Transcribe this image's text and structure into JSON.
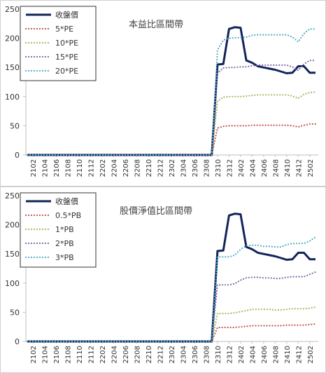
{
  "chart_data": [
    {
      "type": "line",
      "title": "本益比區間帶",
      "xlabel": "",
      "ylabel": "",
      "ylim": [
        0,
        250
      ],
      "yticks": [
        "0",
        "50",
        "100",
        "150",
        "200",
        "250"
      ],
      "grid": false,
      "legend_position": "top-left",
      "x": [
        "2101",
        "2102",
        "2103",
        "2104",
        "2105",
        "2106",
        "2107",
        "2108",
        "2109",
        "2110",
        "2111",
        "2112",
        "2201",
        "2202",
        "2203",
        "2204",
        "2205",
        "2206",
        "2207",
        "2208",
        "2209",
        "2210",
        "2211",
        "2212",
        "2301",
        "2302",
        "2303",
        "2304",
        "2305",
        "2306",
        "2307",
        "2308",
        "2309",
        "2310",
        "2311",
        "2312",
        "2401",
        "2402",
        "2403",
        "2404",
        "2405",
        "2406",
        "2407",
        "2408",
        "2409",
        "2410",
        "2411",
        "2412",
        "2501",
        "2502",
        "2503"
      ],
      "xtick_labels": [
        "2102",
        "2104",
        "2106",
        "2108",
        "2110",
        "2112",
        "2202",
        "2204",
        "2206",
        "2208",
        "2210",
        "2212",
        "2302",
        "2304",
        "2306",
        "2308",
        "2310",
        "2312",
        "2402",
        "2404",
        "2406",
        "2408",
        "2410",
        "2412",
        "2502"
      ],
      "series": [
        {
          "name": "收盤價",
          "color": "#12245a",
          "style": "solid",
          "values": [
            0,
            0,
            0,
            0,
            0,
            0,
            0,
            0,
            0,
            0,
            0,
            0,
            0,
            0,
            0,
            0,
            0,
            0,
            0,
            0,
            0,
            0,
            0,
            0,
            0,
            0,
            0,
            0,
            0,
            0,
            0,
            0,
            0,
            155,
            156,
            216,
            219,
            218,
            162,
            158,
            152,
            150,
            148,
            146,
            143,
            140,
            141,
            152,
            152,
            141,
            141
          ]
        },
        {
          "name": "5*PE",
          "color": "#c0504d",
          "style": "dotted",
          "values": [
            0,
            0,
            0,
            0,
            0,
            0,
            0,
            0,
            0,
            0,
            0,
            0,
            0,
            0,
            0,
            0,
            0,
            0,
            0,
            0,
            0,
            0,
            0,
            0,
            0,
            0,
            0,
            0,
            0,
            0,
            0,
            0,
            0,
            46,
            49,
            50,
            50,
            50,
            50,
            51,
            51,
            51,
            51,
            51,
            51,
            51,
            50,
            48,
            51,
            53,
            53
          ]
        },
        {
          "name": "10*PE",
          "color": "#9bbb59",
          "style": "dotted",
          "values": [
            0,
            0,
            0,
            0,
            0,
            0,
            0,
            0,
            0,
            0,
            0,
            0,
            0,
            0,
            0,
            0,
            0,
            0,
            0,
            0,
            0,
            0,
            0,
            0,
            0,
            0,
            0,
            0,
            0,
            0,
            0,
            0,
            0,
            92,
            99,
            100,
            100,
            100,
            101,
            102,
            103,
            103,
            103,
            103,
            103,
            103,
            101,
            97,
            104,
            107,
            108
          ]
        },
        {
          "name": "15*PE",
          "color": "#8064a2",
          "style": "dotted",
          "values": [
            0,
            0,
            0,
            0,
            0,
            0,
            0,
            0,
            0,
            0,
            0,
            0,
            0,
            0,
            0,
            0,
            0,
            0,
            0,
            0,
            0,
            0,
            0,
            0,
            0,
            0,
            0,
            0,
            0,
            0,
            0,
            0,
            0,
            140,
            149,
            150,
            150,
            151,
            151,
            153,
            154,
            154,
            154,
            154,
            154,
            154,
            151,
            145,
            156,
            162,
            162
          ]
        },
        {
          "name": "20*PE",
          "color": "#4bacc6",
          "style": "dotted",
          "values": [
            0,
            0,
            0,
            0,
            0,
            0,
            0,
            0,
            0,
            0,
            0,
            0,
            0,
            0,
            0,
            0,
            0,
            0,
            0,
            0,
            0,
            0,
            0,
            0,
            0,
            0,
            0,
            0,
            0,
            0,
            0,
            0,
            0,
            180,
            197,
            200,
            201,
            201,
            202,
            205,
            206,
            206,
            206,
            206,
            206,
            206,
            202,
            194,
            208,
            216,
            216
          ]
        }
      ]
    },
    {
      "type": "line",
      "title": "股價淨值比區間帶",
      "xlabel": "",
      "ylabel": "",
      "ylim": [
        0,
        250
      ],
      "yticks": [
        "0",
        "50",
        "100",
        "150",
        "200",
        "250"
      ],
      "grid": false,
      "legend_position": "top-left",
      "x": [
        "2101",
        "2102",
        "2103",
        "2104",
        "2105",
        "2106",
        "2107",
        "2108",
        "2109",
        "2110",
        "2111",
        "2112",
        "2201",
        "2202",
        "2203",
        "2204",
        "2205",
        "2206",
        "2207",
        "2208",
        "2209",
        "2210",
        "2211",
        "2212",
        "2301",
        "2302",
        "2303",
        "2304",
        "2305",
        "2306",
        "2307",
        "2308",
        "2309",
        "2310",
        "2311",
        "2312",
        "2401",
        "2402",
        "2403",
        "2404",
        "2405",
        "2406",
        "2407",
        "2408",
        "2409",
        "2410",
        "2411",
        "2412",
        "2501",
        "2502",
        "2503"
      ],
      "xtick_labels": [
        "2102",
        "2104",
        "2106",
        "2108",
        "2110",
        "2112",
        "2202",
        "2204",
        "2206",
        "2208",
        "2210",
        "2212",
        "2302",
        "2304",
        "2306",
        "2308",
        "2310",
        "2312",
        "2402",
        "2404",
        "2406",
        "2408",
        "2410",
        "2412",
        "2502"
      ],
      "series": [
        {
          "name": "收盤價",
          "color": "#12245a",
          "style": "solid",
          "values": [
            0,
            0,
            0,
            0,
            0,
            0,
            0,
            0,
            0,
            0,
            0,
            0,
            0,
            0,
            0,
            0,
            0,
            0,
            0,
            0,
            0,
            0,
            0,
            0,
            0,
            0,
            0,
            0,
            0,
            0,
            0,
            0,
            0,
            155,
            156,
            216,
            219,
            218,
            162,
            158,
            152,
            150,
            148,
            146,
            143,
            140,
            141,
            152,
            152,
            141,
            141
          ]
        },
        {
          "name": "0.5*PB",
          "color": "#c0504d",
          "style": "dotted",
          "values": [
            0,
            0,
            0,
            0,
            0,
            0,
            0,
            0,
            0,
            0,
            0,
            0,
            0,
            0,
            0,
            0,
            0,
            0,
            0,
            0,
            0,
            0,
            0,
            0,
            0,
            0,
            0,
            0,
            0,
            0,
            0,
            0,
            0,
            24,
            24,
            24,
            24,
            25,
            26,
            27,
            27,
            27,
            27,
            27,
            27,
            28,
            28,
            28,
            28,
            29,
            30
          ]
        },
        {
          "name": "1*PB",
          "color": "#9bbb59",
          "style": "dotted",
          "values": [
            0,
            0,
            0,
            0,
            0,
            0,
            0,
            0,
            0,
            0,
            0,
            0,
            0,
            0,
            0,
            0,
            0,
            0,
            0,
            0,
            0,
            0,
            0,
            0,
            0,
            0,
            0,
            0,
            0,
            0,
            0,
            0,
            0,
            48,
            48,
            48,
            49,
            51,
            53,
            55,
            55,
            55,
            55,
            54,
            54,
            55,
            56,
            56,
            56,
            57,
            59
          ]
        },
        {
          "name": "2*PB",
          "color": "#8064a2",
          "style": "dotted",
          "values": [
            0,
            0,
            0,
            0,
            0,
            0,
            0,
            0,
            0,
            0,
            0,
            0,
            0,
            0,
            0,
            0,
            0,
            0,
            0,
            0,
            0,
            0,
            0,
            0,
            0,
            0,
            0,
            0,
            0,
            0,
            0,
            0,
            0,
            97,
            97,
            97,
            99,
            105,
            109,
            110,
            110,
            109,
            109,
            108,
            108,
            110,
            111,
            111,
            111,
            115,
            119
          ]
        },
        {
          "name": "3*PB",
          "color": "#4bacc6",
          "style": "dotted",
          "values": [
            0,
            0,
            0,
            0,
            0,
            0,
            0,
            0,
            0,
            0,
            0,
            0,
            0,
            0,
            0,
            0,
            0,
            0,
            0,
            0,
            0,
            0,
            0,
            0,
            0,
            0,
            0,
            0,
            0,
            0,
            0,
            0,
            0,
            145,
            145,
            145,
            148,
            158,
            164,
            165,
            165,
            163,
            163,
            162,
            162,
            166,
            168,
            168,
            168,
            172,
            179
          ]
        }
      ]
    }
  ]
}
